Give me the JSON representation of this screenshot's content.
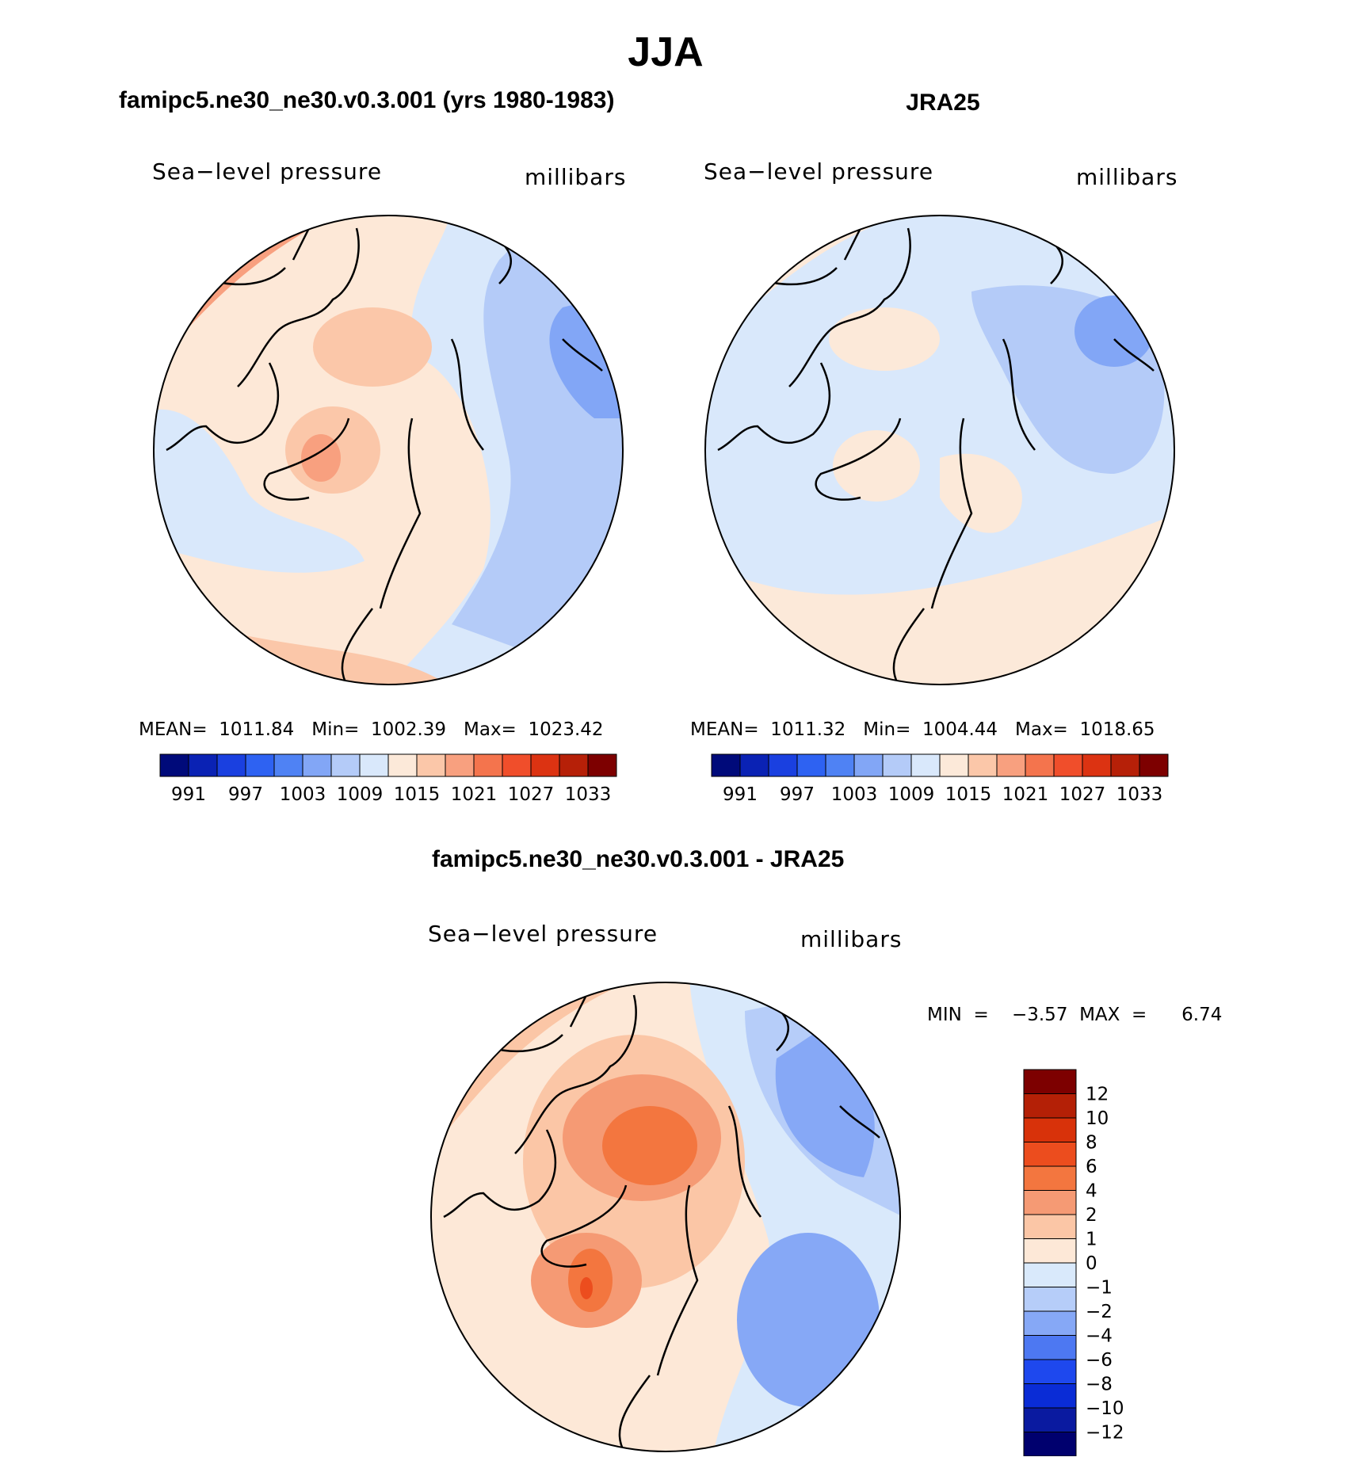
{
  "title": "JJA",
  "panel_left": {
    "subtitle": "famipc5.ne30_ne30.v0.3.001 (yrs 1980-1983)",
    "variable": "Sea−level pressure",
    "units": "millibars",
    "stats": "MEAN=  1011.84   Min=  1002.39   Max=  1023.42"
  },
  "panel_right": {
    "subtitle": "JRA25",
    "variable": "Sea−level pressure",
    "units": "millibars",
    "stats": "MEAN=  1011.32   Min=  1004.44   Max=  1018.65"
  },
  "panel_diff": {
    "subtitle": "famipc5.ne30_ne30.v0.3.001 - JRA25",
    "variable": "Sea−level pressure",
    "units": "millibars",
    "minmax": "MIN  =    −3.57  MAX  =      6.74"
  },
  "colors": {
    "abs_scale": [
      "#000a7a",
      "#0a22b4",
      "#1a40e0",
      "#2e62f2",
      "#4f82f4",
      "#82a6f6",
      "#b4cbf8",
      "#d9e8fb",
      "#fce9d9",
      "#fbc7a9",
      "#f8a07f",
      "#f4744d",
      "#f04e2b",
      "#dc3312",
      "#b62008",
      "#7d0000"
    ],
    "diff_scale": [
      "#00006e",
      "#0a1aa0",
      "#0a2cd6",
      "#1e48ee",
      "#4d78f2",
      "#86a8f6",
      "#b6cdf9",
      "#d9e9fb",
      "#fde8d7",
      "#fbc6a6",
      "#f59a74",
      "#f3763f",
      "#ec4d1e",
      "#d8320a",
      "#b42006",
      "#7d0000"
    ]
  },
  "chart_data": [
    {
      "type": "heatmap",
      "title": "famipc5.ne30_ne30.v0.3.001 (yrs 1980-1983)",
      "variable": "Sea-level pressure",
      "units": "millibars",
      "projection": "north polar stereographic",
      "mean": 1011.84,
      "min": 1002.39,
      "max": 1023.42,
      "colorbar_ticks": [
        "991",
        "997",
        "1003",
        "1009",
        "1015",
        "1021",
        "1027",
        "1033"
      ],
      "colorbar_orientation": "horizontal"
    },
    {
      "type": "heatmap",
      "title": "JRA25",
      "variable": "Sea-level pressure",
      "units": "millibars",
      "projection": "north polar stereographic",
      "mean": 1011.32,
      "min": 1004.44,
      "max": 1018.65,
      "colorbar_ticks": [
        "991",
        "997",
        "1003",
        "1009",
        "1015",
        "1021",
        "1027",
        "1033"
      ],
      "colorbar_orientation": "horizontal"
    },
    {
      "type": "heatmap",
      "title": "famipc5.ne30_ne30.v0.3.001 - JRA25",
      "variable": "Sea-level pressure",
      "units": "millibars",
      "projection": "north polar stereographic",
      "min": -3.57,
      "max": 6.74,
      "colorbar_ticks": [
        "12",
        "10",
        "8",
        "6",
        "4",
        "2",
        "1",
        "0",
        "−1",
        "−2",
        "−4",
        "−6",
        "−8",
        "−10",
        "−12"
      ],
      "colorbar_orientation": "vertical"
    }
  ]
}
